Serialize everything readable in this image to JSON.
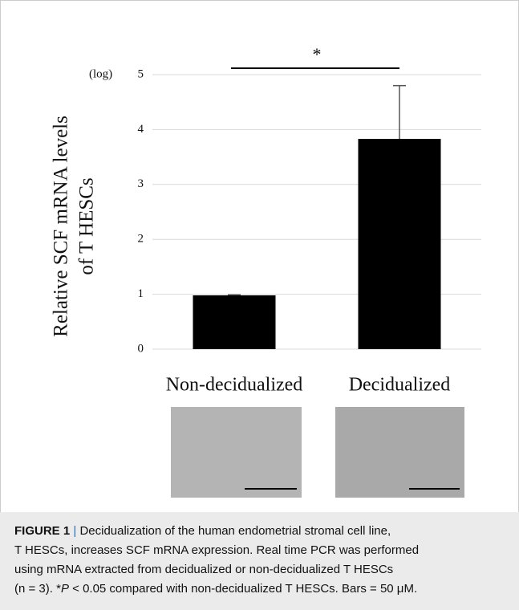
{
  "chart_data": {
    "type": "bar",
    "categories": [
      "Non-decidualized",
      "Decidualized"
    ],
    "values": [
      0.98,
      3.83
    ],
    "errors": [
      0.01,
      0.97
    ],
    "color": "#000000",
    "ylabel": [
      "Relative SCF mRNA levels",
      "of T HESCs"
    ],
    "yunit": "(log)",
    "ylim": [
      0,
      5
    ],
    "yticks": [
      0,
      1,
      2,
      3,
      4,
      5
    ],
    "grid": true,
    "significance": {
      "label": "*",
      "between": [
        0,
        1
      ]
    }
  },
  "caption": {
    "label": "FIGURE 1",
    "separator": "|",
    "lines": [
      "Decidualization of the human endometrial stromal cell line,",
      "T HESCs, increases SCF mRNA expression. Real time PCR was performed",
      "using mRNA extracted from decidualized or non-decidualized T HESCs"
    ],
    "last_line": [
      "(n = 3). *",
      "P",
      " < 0.05 compared with non-decidualized T HESCs. Bars = 50 μM."
    ]
  }
}
